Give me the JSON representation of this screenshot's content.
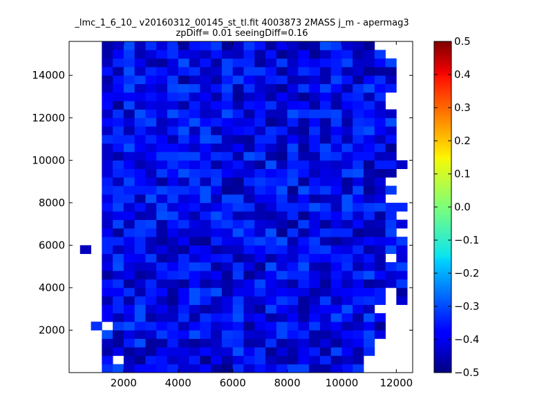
{
  "chart_data": {
    "type": "heatmap",
    "title_line1": "_lmc_1_6_10_ v20160312_00145_st_tl.fit 4003873 2MASS j_m - apermag3",
    "title_line2": "zpDiff= 0.01 seeingDiff=0.16",
    "xlabel": "",
    "ylabel": "",
    "xlim": [
      0,
      12600
    ],
    "ylim": [
      0,
      15600
    ],
    "xticks": [
      2000,
      4000,
      6000,
      8000,
      10000,
      12000
    ],
    "yticks": [
      2000,
      4000,
      6000,
      8000,
      10000,
      12000,
      14000
    ],
    "colorbar": {
      "colormap": "jet",
      "vmin": -0.5,
      "vmax": 0.5,
      "ticks": [
        -0.5,
        -0.4,
        -0.3,
        -0.2,
        -0.1,
        0.0,
        0.1,
        0.2,
        0.3,
        0.4,
        0.5
      ],
      "tick_labels": [
        "−0.5",
        "−0.4",
        "−0.3",
        "−0.2",
        "−0.1",
        "0.0",
        "0.1",
        "0.2",
        "0.3",
        "0.4",
        "0.5"
      ]
    },
    "bin_size": 400,
    "x_bins_start": 0,
    "y_bins_start": 0,
    "n_cols": 31,
    "n_rows": 39,
    "null_value": null,
    "values": [
      [
        null,
        null,
        null,
        -0.33,
        -0.3,
        -0.43,
        -0.37,
        -0.37,
        -0.36,
        -0.34,
        -0.42,
        -0.42,
        -0.37,
        -0.47,
        -0.49,
        -0.33,
        -0.42,
        -0.36,
        -0.4,
        -0.35,
        -0.31,
        -0.31,
        -0.46,
        -0.46,
        -0.4,
        -0.36,
        -0.32,
        null,
        null,
        null,
        null
      ],
      [
        null,
        null,
        null,
        -0.36,
        null,
        -0.44,
        -0.48,
        -0.35,
        -0.36,
        -0.43,
        -0.41,
        -0.35,
        -0.49,
        -0.38,
        -0.46,
        -0.4,
        -0.35,
        -0.33,
        -0.44,
        -0.46,
        -0.47,
        -0.38,
        -0.42,
        -0.34,
        -0.46,
        -0.43,
        -0.45,
        null,
        null,
        null,
        null
      ],
      [
        null,
        null,
        null,
        -0.46,
        -0.39,
        -0.47,
        -0.44,
        -0.47,
        -0.39,
        -0.4,
        -0.4,
        -0.42,
        -0.37,
        -0.42,
        -0.41,
        -0.3,
        -0.39,
        -0.33,
        -0.48,
        -0.41,
        -0.46,
        -0.39,
        -0.35,
        -0.47,
        -0.31,
        -0.38,
        -0.46,
        -0.34,
        null,
        null,
        null
      ],
      [
        null,
        null,
        null,
        -0.44,
        -0.47,
        -0.35,
        -0.3,
        -0.47,
        -0.46,
        -0.35,
        -0.45,
        -0.47,
        -0.45,
        -0.43,
        -0.33,
        -0.34,
        -0.46,
        -0.45,
        -0.33,
        -0.46,
        -0.44,
        -0.41,
        -0.46,
        -0.41,
        -0.47,
        -0.41,
        -0.38,
        -0.32,
        null,
        null,
        null
      ],
      [
        null,
        null,
        null,
        -0.3,
        -0.47,
        -0.4,
        -0.44,
        -0.42,
        -0.32,
        -0.36,
        -0.37,
        -0.3,
        -0.35,
        -0.44,
        -0.32,
        -0.33,
        -0.42,
        -0.43,
        -0.4,
        -0.31,
        -0.36,
        -0.34,
        -0.46,
        -0.46,
        -0.42,
        -0.37,
        -0.36,
        -0.31,
        -0.4,
        null,
        null
      ],
      [
        null,
        null,
        -0.33,
        null,
        -0.32,
        -0.3,
        -0.35,
        -0.34,
        -0.37,
        -0.35,
        -0.44,
        -0.37,
        -0.35,
        -0.42,
        -0.39,
        -0.36,
        -0.48,
        -0.39,
        -0.37,
        -0.31,
        -0.34,
        -0.4,
        -0.32,
        -0.41,
        -0.38,
        -0.45,
        -0.43,
        -0.38,
        -0.48,
        null,
        null
      ],
      [
        null,
        null,
        null,
        -0.38,
        -0.45,
        -0.4,
        -0.3,
        -0.46,
        -0.43,
        -0.43,
        -0.33,
        -0.46,
        -0.33,
        -0.36,
        -0.35,
        -0.3,
        -0.4,
        -0.37,
        -0.46,
        -0.44,
        -0.38,
        -0.46,
        -0.37,
        -0.42,
        -0.3,
        -0.36,
        -0.46,
        -0.3,
        -0.37,
        null,
        null
      ],
      [
        null,
        null,
        null,
        -0.38,
        -0.34,
        -0.38,
        -0.3,
        -0.42,
        -0.39,
        -0.44,
        -0.35,
        -0.42,
        -0.46,
        -0.44,
        -0.4,
        -0.31,
        -0.43,
        -0.47,
        -0.31,
        -0.38,
        -0.41,
        -0.47,
        -0.4,
        -0.38,
        -0.38,
        -0.3,
        -0.39,
        -0.44,
        null,
        null,
        null
      ],
      [
        null,
        null,
        null,
        -0.45,
        -0.34,
        -0.46,
        -0.33,
        -0.36,
        -0.44,
        -0.48,
        -0.38,
        -0.3,
        -0.35,
        -0.44,
        -0.4,
        -0.32,
        -0.43,
        -0.42,
        -0.38,
        -0.32,
        -0.34,
        -0.47,
        -0.43,
        -0.32,
        -0.45,
        -0.4,
        -0.34,
        -0.33,
        -0.35,
        null,
        -0.42
      ],
      [
        null,
        null,
        null,
        -0.38,
        -0.38,
        -0.33,
        -0.45,
        -0.35,
        -0.37,
        -0.47,
        -0.38,
        -0.3,
        -0.33,
        -0.3,
        -0.46,
        -0.39,
        -0.39,
        -0.34,
        -0.4,
        -0.38,
        -0.39,
        -0.4,
        -0.46,
        -0.44,
        -0.39,
        -0.38,
        -0.37,
        -0.37,
        -0.35,
        null,
        -0.47
      ],
      [
        null,
        null,
        null,
        -0.36,
        -0.33,
        -0.47,
        -0.42,
        -0.34,
        -0.44,
        -0.44,
        -0.47,
        -0.37,
        -0.46,
        -0.43,
        -0.46,
        -0.42,
        -0.39,
        -0.31,
        -0.39,
        -0.42,
        -0.46,
        -0.35,
        -0.39,
        -0.47,
        -0.37,
        -0.44,
        -0.39,
        -0.47,
        -0.45,
        -0.42,
        -0.32
      ],
      [
        null,
        null,
        null,
        -0.47,
        -0.42,
        -0.39,
        -0.47,
        -0.45,
        -0.36,
        -0.34,
        -0.33,
        -0.37,
        -0.41,
        -0.38,
        -0.47,
        -0.32,
        -0.48,
        -0.43,
        -0.38,
        -0.31,
        -0.34,
        -0.34,
        -0.4,
        -0.44,
        -0.36,
        -0.41,
        -0.33,
        -0.3,
        -0.37,
        -0.42,
        -0.4
      ],
      [
        null,
        null,
        null,
        -0.4,
        -0.3,
        -0.41,
        -0.43,
        -0.42,
        -0.34,
        -0.38,
        -0.34,
        -0.31,
        -0.32,
        -0.47,
        -0.43,
        -0.33,
        -0.4,
        -0.48,
        -0.3,
        -0.41,
        -0.36,
        -0.3,
        -0.45,
        -0.46,
        -0.38,
        -0.33,
        -0.45,
        -0.4,
        -0.45,
        -0.34,
        -0.31
      ],
      [
        null,
        null,
        null,
        -0.42,
        -0.31,
        -0.38,
        -0.39,
        -0.32,
        -0.46,
        -0.44,
        -0.34,
        -0.42,
        -0.38,
        -0.36,
        -0.35,
        -0.47,
        -0.45,
        -0.39,
        -0.46,
        -0.4,
        -0.42,
        -0.34,
        -0.37,
        -0.38,
        -0.35,
        -0.34,
        -0.41,
        -0.36,
        -0.45,
        null,
        -0.41
      ],
      [
        null,
        -0.44,
        null,
        -0.34,
        -0.44,
        -0.4,
        -0.34,
        -0.44,
        -0.4,
        -0.45,
        -0.47,
        -0.37,
        -0.39,
        -0.46,
        -0.44,
        -0.43,
        -0.36,
        -0.38,
        -0.34,
        -0.35,
        -0.42,
        -0.38,
        -0.33,
        -0.32,
        -0.39,
        -0.4,
        -0.34,
        -0.46,
        -0.43,
        -0.3,
        -0.4
      ],
      [
        null,
        null,
        null,
        -0.34,
        -0.34,
        -0.39,
        -0.34,
        -0.44,
        -0.47,
        -0.44,
        -0.38,
        -0.47,
        -0.48,
        -0.34,
        -0.39,
        -0.4,
        -0.33,
        -0.31,
        -0.34,
        -0.3,
        -0.45,
        -0.36,
        -0.32,
        -0.45,
        -0.47,
        -0.44,
        -0.41,
        -0.37,
        -0.39,
        -0.38,
        -0.32
      ],
      [
        null,
        null,
        null,
        -0.39,
        -0.47,
        -0.33,
        -0.32,
        -0.34,
        -0.46,
        -0.39,
        -0.43,
        -0.42,
        -0.42,
        -0.39,
        -0.4,
        -0.3,
        -0.36,
        -0.42,
        -0.3,
        -0.48,
        -0.33,
        -0.46,
        -0.39,
        -0.33,
        -0.34,
        -0.34,
        -0.48,
        -0.46,
        -0.46,
        -0.31,
        null
      ],
      [
        null,
        null,
        null,
        -0.43,
        -0.31,
        -0.45,
        -0.32,
        -0.31,
        -0.46,
        -0.36,
        -0.33,
        -0.4,
        -0.42,
        -0.34,
        -0.32,
        -0.35,
        -0.32,
        -0.41,
        -0.42,
        -0.45,
        -0.48,
        -0.32,
        -0.4,
        -0.47,
        -0.4,
        -0.44,
        -0.37,
        -0.45,
        -0.44,
        -0.32,
        -0.41
      ],
      [
        null,
        null,
        null,
        -0.42,
        -0.39,
        -0.38,
        -0.45,
        -0.44,
        -0.3,
        -0.31,
        -0.4,
        -0.45,
        -0.35,
        -0.3,
        -0.35,
        -0.45,
        -0.44,
        -0.45,
        -0.46,
        -0.43,
        -0.34,
        -0.48,
        -0.4,
        -0.35,
        -0.38,
        -0.33,
        -0.42,
        -0.34,
        -0.47,
        -0.34,
        null
      ],
      [
        null,
        null,
        null,
        -0.36,
        -0.31,
        -0.42,
        -0.36,
        -0.44,
        -0.31,
        -0.41,
        -0.38,
        -0.36,
        -0.42,
        -0.39,
        -0.35,
        -0.32,
        -0.33,
        -0.45,
        -0.41,
        -0.34,
        -0.34,
        -0.35,
        -0.3,
        -0.33,
        -0.44,
        -0.3,
        -0.34,
        -0.32,
        -0.31,
        -0.34,
        -0.34
      ],
      [
        null,
        null,
        null,
        -0.4,
        -0.33,
        -0.33,
        -0.46,
        -0.3,
        -0.41,
        -0.32,
        -0.41,
        -0.39,
        -0.3,
        -0.44,
        -0.31,
        -0.31,
        -0.45,
        -0.39,
        -0.39,
        -0.33,
        -0.45,
        -0.37,
        -0.46,
        -0.44,
        -0.43,
        -0.3,
        -0.38,
        -0.43,
        -0.4,
        null,
        null
      ],
      [
        null,
        null,
        null,
        -0.34,
        -0.33,
        -0.35,
        -0.35,
        -0.35,
        -0.31,
        -0.33,
        -0.33,
        -0.35,
        -0.3,
        -0.39,
        -0.48,
        -0.47,
        -0.43,
        -0.34,
        -0.36,
        -0.3,
        -0.48,
        -0.3,
        -0.35,
        -0.32,
        -0.37,
        -0.46,
        -0.31,
        -0.48,
        -0.43,
        -0.32,
        null
      ],
      [
        null,
        null,
        null,
        -0.35,
        -0.44,
        -0.31,
        -0.37,
        -0.4,
        -0.47,
        -0.39,
        -0.44,
        -0.32,
        -0.44,
        -0.32,
        -0.46,
        -0.48,
        -0.34,
        -0.32,
        -0.34,
        -0.35,
        -0.31,
        -0.47,
        -0.36,
        -0.4,
        -0.39,
        -0.47,
        -0.4,
        -0.46,
        -0.41,
        null,
        null
      ],
      [
        null,
        null,
        null,
        -0.41,
        -0.34,
        -0.35,
        -0.37,
        -0.44,
        -0.32,
        -0.37,
        -0.3,
        -0.33,
        -0.34,
        -0.33,
        -0.38,
        -0.41,
        -0.41,
        -0.35,
        -0.38,
        -0.36,
        -0.32,
        -0.36,
        -0.44,
        -0.4,
        -0.41,
        -0.31,
        -0.3,
        -0.45,
        -0.47,
        -0.46,
        null
      ],
      [
        null,
        null,
        null,
        -0.41,
        -0.33,
        -0.38,
        -0.45,
        -0.42,
        -0.39,
        -0.33,
        -0.36,
        -0.39,
        -0.35,
        -0.46,
        -0.4,
        -0.36,
        -0.43,
        -0.47,
        -0.3,
        -0.44,
        -0.35,
        -0.35,
        -0.42,
        -0.41,
        -0.43,
        -0.41,
        -0.33,
        -0.48,
        -0.35,
        -0.35,
        -0.43
      ],
      [
        null,
        null,
        null,
        -0.43,
        -0.46,
        -0.41,
        -0.42,
        -0.38,
        -0.32,
        -0.32,
        -0.31,
        -0.31,
        -0.39,
        -0.33,
        -0.34,
        -0.46,
        -0.3,
        -0.32,
        -0.46,
        -0.48,
        -0.33,
        -0.45,
        -0.45,
        -0.32,
        -0.33,
        -0.4,
        -0.36,
        -0.36,
        -0.44,
        -0.43,
        null
      ],
      [
        null,
        null,
        null,
        -0.43,
        -0.36,
        -0.3,
        -0.38,
        -0.41,
        -0.37,
        -0.37,
        -0.39,
        -0.43,
        -0.37,
        -0.44,
        -0.43,
        -0.38,
        -0.46,
        -0.36,
        -0.42,
        -0.46,
        -0.31,
        -0.47,
        -0.36,
        -0.31,
        -0.4,
        -0.32,
        -0.4,
        -0.37,
        -0.34,
        -0.48,
        null
      ],
      [
        null,
        null,
        null,
        -0.33,
        -0.34,
        -0.34,
        -0.39,
        -0.34,
        -0.38,
        -0.45,
        -0.33,
        -0.39,
        -0.3,
        -0.31,
        -0.44,
        -0.46,
        -0.47,
        -0.34,
        -0.34,
        -0.45,
        -0.38,
        -0.44,
        -0.36,
        -0.46,
        -0.35,
        -0.45,
        -0.34,
        -0.39,
        -0.44,
        -0.36,
        null
      ],
      [
        null,
        null,
        null,
        -0.43,
        -0.33,
        -0.45,
        -0.35,
        -0.41,
        -0.43,
        -0.35,
        -0.3,
        -0.44,
        -0.31,
        -0.46,
        -0.4,
        -0.37,
        -0.36,
        -0.43,
        -0.33,
        -0.35,
        -0.45,
        -0.47,
        -0.33,
        -0.45,
        -0.38,
        -0.42,
        -0.32,
        -0.3,
        -0.38,
        -0.42,
        null
      ],
      [
        null,
        null,
        null,
        -0.37,
        -0.36,
        -0.41,
        -0.33,
        -0.31,
        -0.44,
        -0.41,
        -0.36,
        -0.3,
        -0.37,
        -0.35,
        -0.38,
        -0.41,
        -0.4,
        -0.35,
        -0.48,
        -0.45,
        -0.35,
        -0.46,
        -0.37,
        -0.46,
        -0.32,
        -0.46,
        -0.33,
        -0.34,
        -0.37,
        -0.3,
        null
      ],
      [
        null,
        null,
        null,
        -0.43,
        -0.33,
        -0.46,
        -0.3,
        -0.35,
        -0.4,
        -0.3,
        -0.34,
        -0.36,
        -0.43,
        -0.42,
        -0.3,
        -0.35,
        -0.46,
        -0.36,
        -0.44,
        -0.44,
        -0.3,
        -0.33,
        -0.32,
        -0.32,
        -0.31,
        -0.43,
        -0.35,
        -0.37,
        -0.41,
        -0.43,
        null
      ],
      [
        null,
        null,
        null,
        -0.37,
        -0.48,
        -0.31,
        -0.43,
        -0.4,
        -0.41,
        -0.4,
        -0.46,
        -0.35,
        -0.42,
        -0.37,
        -0.36,
        -0.45,
        -0.36,
        -0.37,
        -0.33,
        -0.43,
        -0.38,
        -0.37,
        -0.46,
        -0.35,
        -0.46,
        -0.38,
        -0.36,
        -0.34,
        -0.42,
        null,
        null
      ],
      [
        null,
        null,
        null,
        -0.38,
        -0.39,
        -0.38,
        -0.39,
        -0.36,
        -0.39,
        -0.34,
        -0.33,
        -0.42,
        -0.38,
        -0.46,
        -0.34,
        -0.48,
        -0.43,
        -0.4,
        -0.46,
        -0.38,
        -0.43,
        -0.48,
        -0.43,
        -0.38,
        -0.45,
        -0.35,
        -0.34,
        -0.45,
        -0.33,
        null,
        null
      ],
      [
        null,
        null,
        null,
        -0.44,
        -0.37,
        -0.3,
        -0.43,
        -0.4,
        -0.43,
        -0.31,
        -0.3,
        -0.31,
        -0.42,
        -0.36,
        -0.31,
        -0.47,
        -0.33,
        -0.42,
        -0.44,
        -0.48,
        -0.4,
        -0.32,
        -0.38,
        -0.31,
        -0.37,
        -0.45,
        -0.33,
        -0.3,
        -0.37,
        -0.35,
        null
      ],
      [
        null,
        null,
        null,
        -0.46,
        -0.36,
        -0.33,
        -0.31,
        -0.37,
        -0.39,
        -0.32,
        -0.48,
        -0.43,
        -0.41,
        -0.46,
        -0.35,
        -0.31,
        -0.38,
        -0.42,
        -0.35,
        -0.34,
        -0.45,
        -0.44,
        -0.41,
        -0.45,
        -0.31,
        -0.36,
        -0.47,
        -0.37,
        -0.33,
        -0.44,
        null
      ],
      [
        null,
        null,
        null,
        -0.36,
        -0.46,
        -0.3,
        -0.43,
        -0.34,
        -0.36,
        -0.41,
        -0.35,
        -0.33,
        -0.44,
        -0.42,
        -0.31,
        -0.43,
        -0.32,
        -0.32,
        -0.36,
        -0.47,
        -0.41,
        -0.33,
        -0.35,
        -0.45,
        -0.35,
        -0.45,
        -0.42,
        -0.48,
        -0.47,
        -0.47,
        null
      ],
      [
        null,
        null,
        null,
        -0.44,
        -0.34,
        -0.33,
        -0.39,
        -0.46,
        -0.47,
        -0.4,
        -0.3,
        -0.44,
        -0.36,
        -0.46,
        -0.31,
        -0.34,
        -0.34,
        -0.47,
        -0.42,
        -0.32,
        -0.43,
        -0.37,
        -0.39,
        -0.36,
        -0.35,
        -0.31,
        -0.43,
        -0.43,
        -0.37,
        -0.31,
        null
      ],
      [
        null,
        null,
        null,
        -0.46,
        -0.38,
        -0.32,
        -0.45,
        -0.41,
        -0.36,
        -0.33,
        -0.4,
        -0.41,
        -0.44,
        -0.36,
        -0.43,
        -0.44,
        -0.35,
        -0.46,
        -0.36,
        -0.48,
        -0.45,
        -0.38,
        -0.48,
        -0.43,
        -0.36,
        -0.35,
        -0.46,
        -0.43,
        -0.32,
        null,
        null
      ],
      [
        null,
        null,
        null,
        -0.46,
        -0.43,
        -0.3,
        -0.44,
        -0.33,
        -0.41,
        -0.33,
        -0.47,
        -0.36,
        -0.35,
        -0.32,
        -0.48,
        -0.43,
        -0.32,
        -0.36,
        -0.47,
        -0.39,
        -0.43,
        -0.47,
        -0.46,
        -0.3,
        -0.32,
        -0.42,
        -0.44,
        -0.48,
        null,
        null,
        null
      ]
    ]
  }
}
